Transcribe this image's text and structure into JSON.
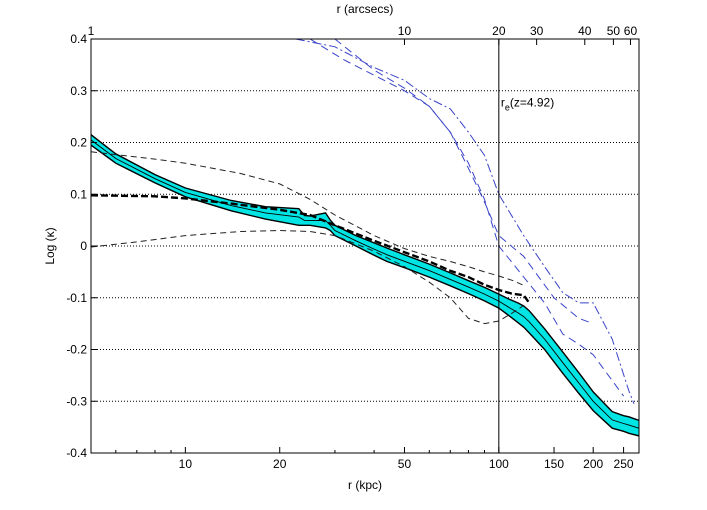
{
  "chart_data": {
    "type": "line",
    "title": "",
    "xlabel": "r (kpc)",
    "ylabel": "Log (κ)",
    "top_axis_label": "r (arcsecs)",
    "x_scale": "log",
    "xlim": [
      5.0,
      280
    ],
    "ylim": [
      -0.4,
      0.4
    ],
    "x_ticks": [
      10,
      20,
      50,
      100,
      150,
      200,
      250
    ],
    "x_tick_labels": [
      "10",
      "20",
      "50",
      "100",
      "150",
      "200",
      "250"
    ],
    "top_ticks_kpc": [
      5.0,
      50,
      100,
      132,
      188,
      232,
      263
    ],
    "top_tick_labels": [
      "1",
      "10",
      "20",
      "30",
      "40",
      "50",
      "60"
    ],
    "y_ticks": [
      -0.4,
      -0.3,
      -0.2,
      -0.1,
      0,
      0.1,
      0.2,
      0.3,
      0.4
    ],
    "y_tick_labels": [
      "-0.4",
      "-0.3",
      "-0.2",
      "-0.1",
      "0",
      "0.1",
      "0.2",
      "0.3",
      "0.4"
    ],
    "grid": "horizontal dotted",
    "vline": {
      "x": 100,
      "label_main": "r",
      "label_sub": "e",
      "label_rest": "(z=4.92)"
    },
    "band": {
      "name": "Log κ (cyan band)",
      "color": "#00e4e4",
      "x": [
        5.0,
        6.0,
        8.0,
        10.0,
        14.0,
        18.0,
        23.0,
        24.0,
        25.0,
        28.0,
        29.0,
        30.0,
        35.0,
        40.0,
        44.0,
        50.0,
        60.0,
        70.0,
        80.0,
        90.0,
        100.0,
        108.0,
        115.0,
        120.0,
        125.0,
        140.0,
        160.0,
        180.0,
        200.0,
        230.0,
        250.0,
        260.0,
        280.0
      ],
      "upper": [
        0.215,
        0.178,
        0.138,
        0.112,
        0.088,
        0.076,
        0.072,
        0.059,
        0.058,
        0.064,
        0.05,
        0.04,
        0.02,
        0.006,
        -0.004,
        -0.017,
        -0.035,
        -0.052,
        -0.067,
        -0.08,
        -0.093,
        -0.103,
        -0.11,
        -0.116,
        -0.125,
        -0.16,
        -0.205,
        -0.245,
        -0.282,
        -0.32,
        -0.328,
        -0.33,
        -0.337
      ],
      "lower": [
        0.195,
        0.16,
        0.122,
        0.095,
        0.068,
        0.052,
        0.04,
        0.04,
        0.04,
        0.035,
        0.03,
        0.02,
        0.0,
        -0.018,
        -0.03,
        -0.042,
        -0.06,
        -0.077,
        -0.092,
        -0.106,
        -0.12,
        -0.135,
        -0.148,
        -0.157,
        -0.168,
        -0.2,
        -0.246,
        -0.285,
        -0.318,
        -0.352,
        -0.358,
        -0.362,
        -0.367
      ]
    },
    "series": [
      {
        "name": "thick black dashed",
        "style": "thick-dash",
        "color": "#000000",
        "x": [
          5.0,
          8.0,
          10.0,
          14.0,
          20.0,
          25.0,
          30.0,
          40.0,
          50.0,
          60.0,
          70.0,
          80.0,
          90.0,
          100.0,
          110.0,
          120.0,
          125.0
        ],
        "y": [
          0.098,
          0.096,
          0.092,
          0.082,
          0.07,
          0.06,
          0.04,
          0.01,
          -0.012,
          -0.03,
          -0.048,
          -0.06,
          -0.075,
          -0.085,
          -0.092,
          -0.095,
          -0.11
        ]
      },
      {
        "name": "thin black dashed upper",
        "style": "thin-dash",
        "color": "#222222",
        "x": [
          5.0,
          8.0,
          10.0,
          15.0,
          20.0,
          25.0,
          30.0,
          40.0,
          50.0,
          60.0,
          70.0,
          80.0,
          90.0,
          100.0,
          110.0,
          120.0
        ],
        "y": [
          0.182,
          0.168,
          0.16,
          0.14,
          0.12,
          0.09,
          0.06,
          0.02,
          -0.005,
          -0.02,
          -0.03,
          -0.04,
          -0.05,
          -0.058,
          -0.066,
          -0.076
        ]
      },
      {
        "name": "thin black dashed lower",
        "style": "thin-dash",
        "color": "#222222",
        "x": [
          5.0,
          7.0,
          10.0,
          15.0,
          20.0,
          25.0,
          30.0,
          40.0,
          50.0,
          60.0,
          70.0,
          80.0,
          90.0,
          100.0,
          110.0,
          120.0
        ],
        "y": [
          -0.002,
          0.008,
          0.02,
          0.028,
          0.03,
          0.028,
          0.02,
          -0.01,
          -0.04,
          -0.07,
          -0.1,
          -0.14,
          -0.15,
          -0.145,
          -0.13,
          -0.115
        ]
      },
      {
        "name": "blue dash-dot",
        "style": "dash-dot",
        "color": "#3a44c8",
        "x": [
          22.5,
          30.0,
          40.0,
          50.0,
          60.0,
          70.0,
          80.0,
          90.0,
          100.0,
          120.0,
          140.0,
          160.0,
          180.0,
          200.0,
          230.0,
          260.0,
          270.0
        ],
        "y": [
          0.4,
          0.385,
          0.345,
          0.32,
          0.285,
          0.265,
          0.22,
          0.175,
          0.1,
          0.02,
          -0.04,
          -0.09,
          -0.11,
          -0.11,
          -0.18,
          -0.28,
          -0.305
        ]
      },
      {
        "name": "blue dashed 1",
        "style": "dash",
        "color": "#3a44c8",
        "x": [
          25.0,
          32.0,
          40.0,
          50.0,
          60.0,
          70.0,
          80.0,
          90.0,
          100.0,
          120.0,
          150.0,
          180.0,
          200.0
        ],
        "y": [
          0.4,
          0.36,
          0.33,
          0.3,
          0.27,
          0.22,
          0.15,
          0.085,
          0.02,
          -0.02,
          -0.1,
          -0.14,
          -0.15
        ]
      },
      {
        "name": "blue dashed 2",
        "style": "dash",
        "color": "#3a44c8",
        "x": [
          30.0,
          40.0,
          50.0,
          60.0,
          70.0,
          80.0,
          90.0,
          100.0,
          120.0,
          140.0,
          160.0,
          180.0,
          200.0,
          250.0
        ],
        "y": [
          0.4,
          0.34,
          0.305,
          0.27,
          0.22,
          0.16,
          0.09,
          0.0,
          -0.06,
          -0.11,
          -0.17,
          -0.19,
          -0.21,
          -0.29
        ]
      }
    ]
  }
}
